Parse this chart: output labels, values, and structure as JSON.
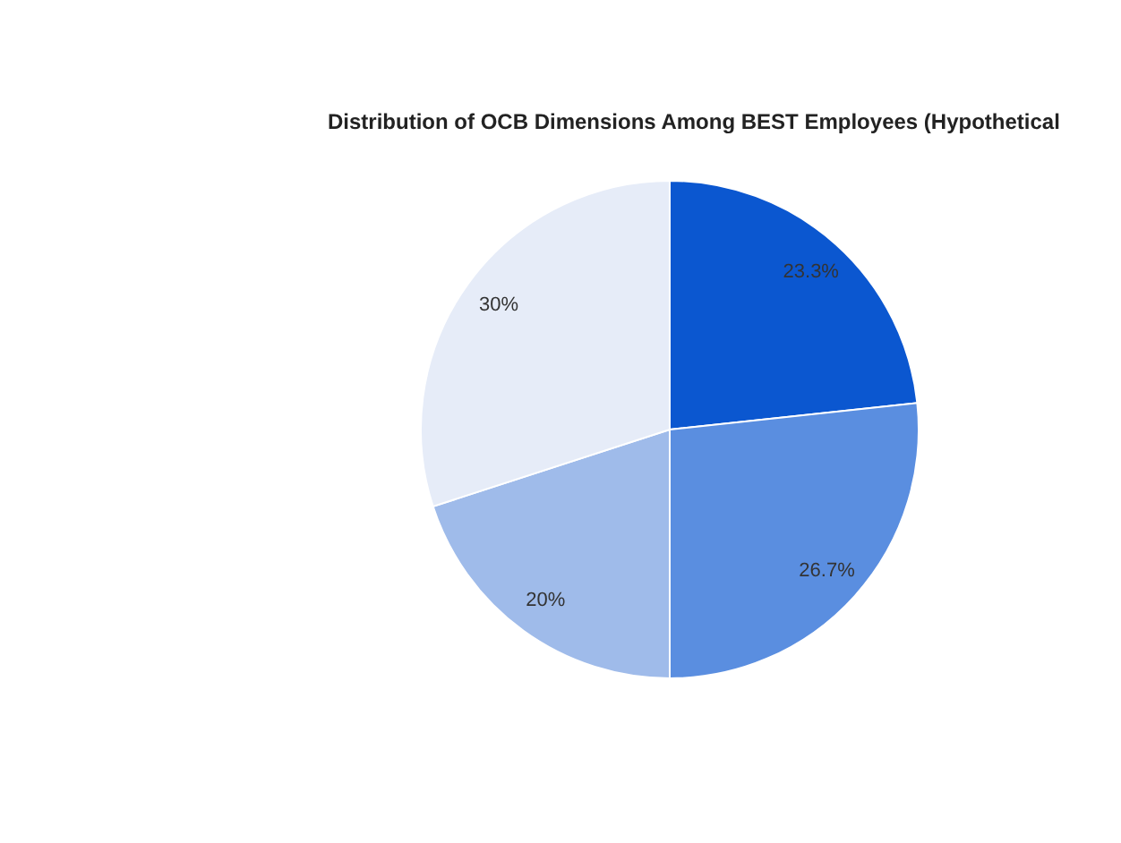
{
  "chart_data": {
    "type": "pie",
    "title": "Distribution of OCB Dimensions Among BEST Employees (Hypothetical",
    "categories": [
      null,
      null,
      null,
      null
    ],
    "values": [
      23.3,
      26.7,
      20,
      30
    ],
    "value_labels": [
      "23.3%",
      "26.7%",
      "20%",
      "30%"
    ],
    "colors": [
      "#0b57d0",
      "#5a8ee0",
      "#9fbbea",
      "#e6ecf8"
    ]
  }
}
